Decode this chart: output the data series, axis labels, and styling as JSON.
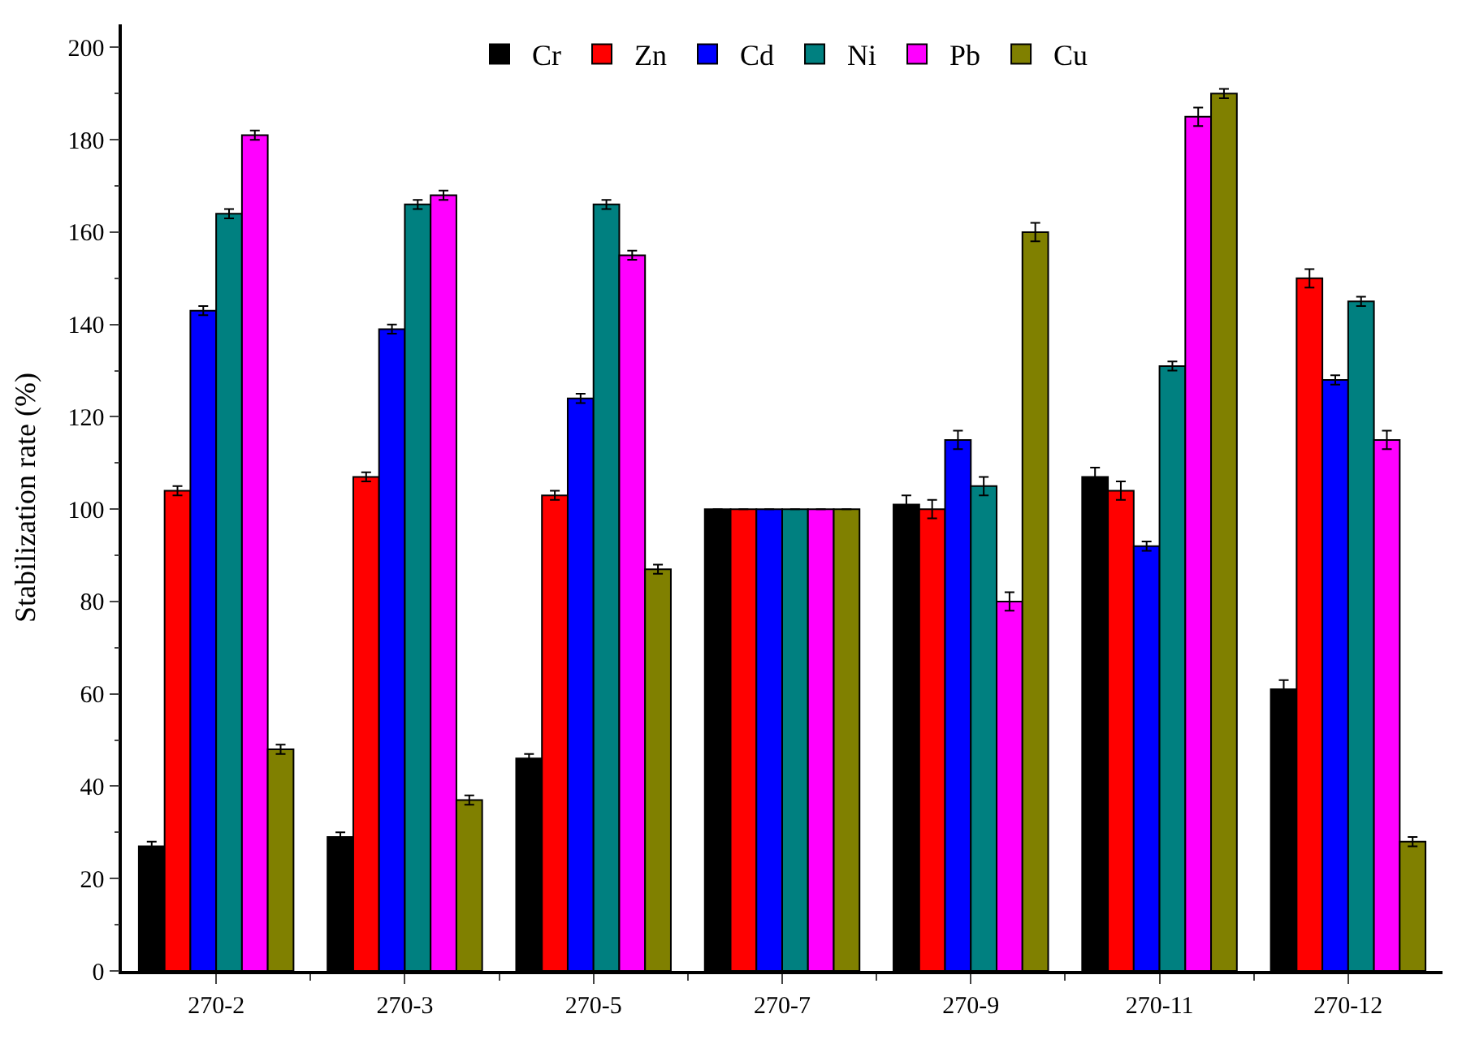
{
  "chart_data": {
    "type": "bar",
    "ylabel": "Stabilization rate (%)",
    "categories": [
      "270-2",
      "270-3",
      "270-5",
      "270-7",
      "270-9",
      "270-11",
      "270-12"
    ],
    "series": [
      {
        "name": "Cr",
        "color": "#000000",
        "values": [
          27,
          29,
          46,
          100,
          101,
          107,
          61
        ],
        "errors": [
          1,
          1,
          1,
          null,
          2,
          2,
          2
        ]
      },
      {
        "name": "Zn",
        "color": "#ff0000",
        "values": [
          104,
          107,
          103,
          100,
          100,
          104,
          150
        ],
        "errors": [
          1,
          1,
          1,
          null,
          2,
          2,
          2
        ]
      },
      {
        "name": "Cd",
        "color": "#0000ff",
        "values": [
          143,
          139,
          124,
          100,
          115,
          92,
          128
        ],
        "errors": [
          1,
          1,
          1,
          null,
          2,
          1,
          1
        ]
      },
      {
        "name": "Ni",
        "color": "#008080",
        "values": [
          164,
          166,
          166,
          100,
          105,
          131,
          145
        ],
        "errors": [
          1,
          1,
          1,
          null,
          2,
          1,
          1
        ]
      },
      {
        "name": "Pb",
        "color": "#ff00ff",
        "values": [
          181,
          168,
          155,
          100,
          80,
          185,
          115
        ],
        "errors": [
          1,
          1,
          1,
          null,
          2,
          2,
          2
        ]
      },
      {
        "name": "Cu",
        "color": "#808000",
        "values": [
          48,
          37,
          87,
          100,
          160,
          190,
          28
        ],
        "errors": [
          1,
          1,
          1,
          null,
          2,
          1,
          1
        ]
      }
    ],
    "ylim": [
      0,
      205
    ],
    "yticks": [
      0,
      20,
      40,
      60,
      80,
      100,
      120,
      140,
      160,
      180,
      200
    ],
    "legend": "top"
  }
}
